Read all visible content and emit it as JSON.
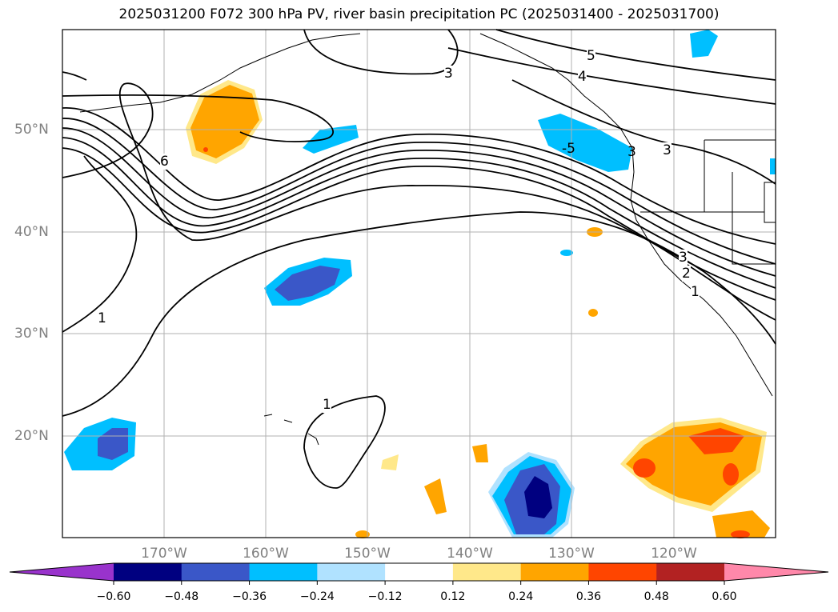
{
  "title": "2025031200 F072 300 hPa PV, river basin precipitation PC (2025031400 - 2025031700)",
  "lat_labels": [
    "50°N",
    "40°N",
    "30°N",
    "20°N"
  ],
  "lon_labels": [
    "170°W",
    "160°W",
    "150°W",
    "140°W",
    "130°W",
    "120°W"
  ],
  "contour_labels": [
    "5",
    "4",
    "3",
    "3",
    "6",
    "-5",
    "3",
    "3",
    "2",
    "1",
    "1",
    "1"
  ],
  "colorbar": {
    "ticks": [
      "−0.60",
      "−0.48",
      "−0.36",
      "−0.24",
      "−0.12",
      "0.12",
      "0.24",
      "0.36",
      "0.48",
      "0.60"
    ],
    "colors": [
      "#9933cc",
      "#000080",
      "#3a57c8",
      "#00bfff",
      "#b0e2ff",
      "#ffffff",
      "#ffe88a",
      "#ffa500",
      "#ff4500",
      "#b22222",
      "#ff88aa"
    ]
  }
}
